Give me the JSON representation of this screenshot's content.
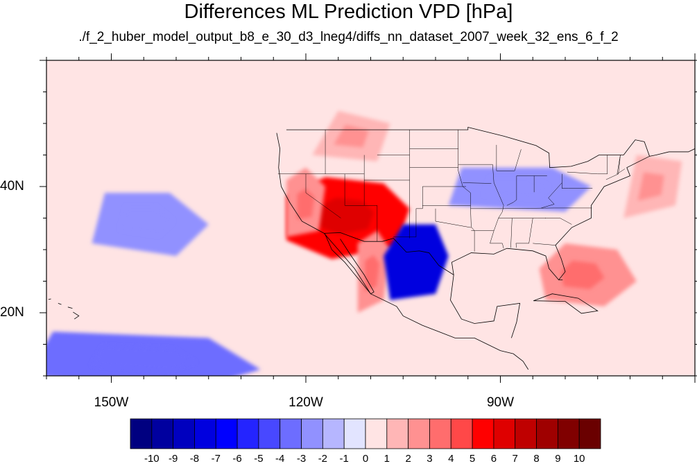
{
  "title": "Differences ML Prediction VPD [hPa]",
  "subtitle": "./f_2_huber_model_output_b8_e_30_d3_lneg4/diffs_nn_dataset_2007_week_32_ens_6_f_2",
  "map": {
    "region": "Continental United States and eastern North Pacific",
    "lon_range": [
      -160,
      -60
    ],
    "lat_range": [
      10,
      60
    ],
    "lon_labels": [
      {
        "value": -150,
        "label": "150W"
      },
      {
        "value": -120,
        "label": "120W"
      },
      {
        "value": -90,
        "label": "90W"
      }
    ],
    "lat_labels": [
      {
        "value": 40,
        "label": "40N"
      },
      {
        "value": 20,
        "label": "20N"
      }
    ],
    "background_level": 0,
    "regions": [
      {
        "name": "southwest US deserts",
        "lon": -114,
        "lat": 35.5,
        "value": 6
      },
      {
        "name": "central valley california",
        "lon": -120,
        "lat": 37,
        "value": 3
      },
      {
        "name": "gulf of california",
        "lon": -110,
        "lat": 26,
        "value": 3
      },
      {
        "name": "florida and bahamas",
        "lon": -78,
        "lat": 26,
        "value": 3
      },
      {
        "name": "northern rockies",
        "lon": -113,
        "lat": 48,
        "value": 2
      },
      {
        "name": "south texas and northern mexico",
        "lon": -103,
        "lat": 28,
        "value": -7
      },
      {
        "name": "midwest",
        "lon": -88,
        "lat": 40,
        "value": -2
      },
      {
        "name": "central pacific",
        "lon": -145,
        "lat": 35,
        "value": -2
      },
      {
        "name": "tropical eastern pacific",
        "lon": -145,
        "lat": 13,
        "value": -3
      },
      {
        "name": "northeast atlantic coast",
        "lon": -67,
        "lat": 40,
        "value": 2
      }
    ]
  },
  "colorbar": {
    "ticks": [
      "-10",
      "-9",
      "-8",
      "-7",
      "-6",
      "-5",
      "-4",
      "-3",
      "-2",
      "-1",
      "0",
      "1",
      "2",
      "3",
      "4",
      "5",
      "6",
      "7",
      "8",
      "9",
      "10"
    ],
    "colors": [
      "#000080",
      "#00009f",
      "#0000bf",
      "#0000df",
      "#0000ff",
      "#2424ff",
      "#4848ff",
      "#6d6dff",
      "#9191ff",
      "#b6b6ff",
      "#e2e4ff",
      "#ffe4e4",
      "#ffb6b6",
      "#ff9191",
      "#ff6d6d",
      "#ff4848",
      "#ff0000",
      "#df0000",
      "#bf0000",
      "#9f0000",
      "#800000",
      "#6a0000"
    ]
  }
}
